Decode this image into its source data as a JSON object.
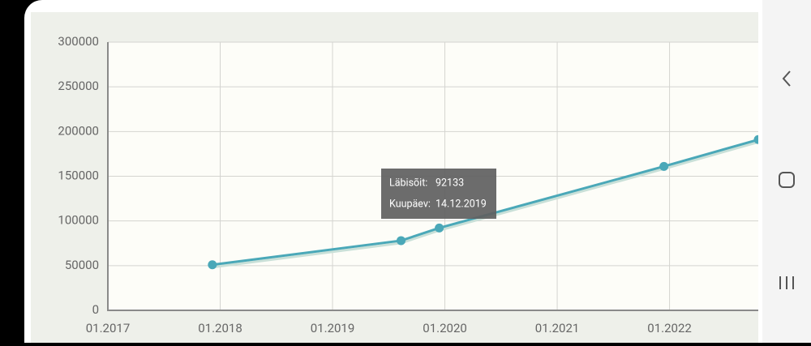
{
  "chart_data": {
    "type": "line",
    "x": [
      2017.93,
      2019.61,
      2019.95,
      2021.95,
      2022.79
    ],
    "values": [
      51000,
      78000,
      92133,
      161000,
      191000
    ],
    "color": "#4aa8b8",
    "xlim": [
      2017,
      2022.79
    ],
    "xticks": [
      {
        "value": 2017,
        "label": "01.2017"
      },
      {
        "value": 2018,
        "label": "01.2018"
      },
      {
        "value": 2019,
        "label": "01.2019"
      },
      {
        "value": 2020,
        "label": "01.2020"
      },
      {
        "value": 2021,
        "label": "01.2021"
      },
      {
        "value": 2022,
        "label": "01.2022"
      }
    ],
    "ylim": [
      0,
      300000
    ],
    "yticks": [
      0,
      50000,
      100000,
      150000,
      200000,
      250000,
      300000
    ],
    "grid": true,
    "tooltip": {
      "mileage_label": "Läbisõit:",
      "mileage": 92133,
      "date_label": "Kuupäev:",
      "date": "14.12.2019"
    }
  }
}
